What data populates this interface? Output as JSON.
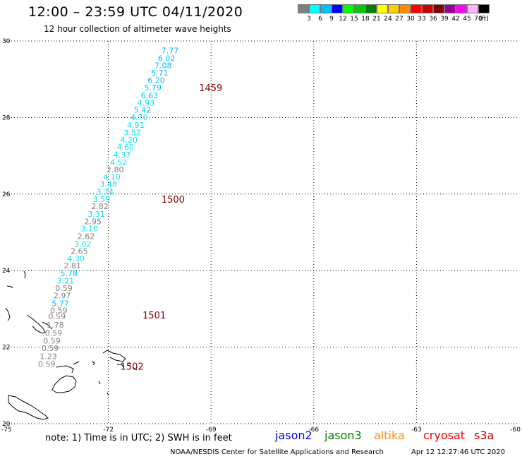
{
  "header": {
    "title": "12:00 – 23:59 UTC 04/11/2020",
    "subtitle": "12 hour collection of altimeter wave heights"
  },
  "colorbar": {
    "unit": "(ft)",
    "bins": [
      {
        "label": "3",
        "color": "#808080"
      },
      {
        "label": "6",
        "color": "#00ffff"
      },
      {
        "label": "9",
        "color": "#00bfff"
      },
      {
        "label": "12",
        "color": "#0000ff"
      },
      {
        "label": "15",
        "color": "#00ff00"
      },
      {
        "label": "18",
        "color": "#00cc00"
      },
      {
        "label": "21",
        "color": "#008000"
      },
      {
        "label": "24",
        "color": "#ffff00"
      },
      {
        "label": "27",
        "color": "#ffcc00"
      },
      {
        "label": "30",
        "color": "#ff8c00"
      },
      {
        "label": "33",
        "color": "#ff0000"
      },
      {
        "label": "36",
        "color": "#cc0000"
      },
      {
        "label": "39",
        "color": "#800000"
      },
      {
        "label": "42",
        "color": "#990099"
      },
      {
        "label": "45",
        "color": "#ff00ff"
      },
      {
        "label": "70",
        "color": "#ffb0ff"
      },
      {
        "label": "",
        "color": "#000000"
      }
    ]
  },
  "map": {
    "lon_range": [
      -75,
      -60
    ],
    "lat_range": [
      20,
      30
    ],
    "lon_ticks": [
      "-75",
      "-72",
      "-69",
      "-66",
      "-63",
      "-60"
    ],
    "lat_ticks": [
      "30",
      "28",
      "26",
      "24",
      "22",
      "20"
    ],
    "track": [
      {
        "lon": -70.2,
        "lat": 29.75,
        "swh": "7.77",
        "color": "#00bfff"
      },
      {
        "lon": -70.3,
        "lat": 29.55,
        "swh": "6.02",
        "color": "#00bfff"
      },
      {
        "lon": -70.4,
        "lat": 29.36,
        "swh": "7.08",
        "color": "#00bfff"
      },
      {
        "lon": -70.5,
        "lat": 29.17,
        "swh": "5.71",
        "color": "#00bfff"
      },
      {
        "lon": -70.6,
        "lat": 28.98,
        "swh": "6.20",
        "color": "#00bfff"
      },
      {
        "lon": -70.7,
        "lat": 28.78,
        "swh": "5.79",
        "color": "#00bfff"
      },
      {
        "lon": -70.8,
        "lat": 28.58,
        "swh": "6.63",
        "color": "#00bfff"
      },
      {
        "lon": -70.9,
        "lat": 28.39,
        "swh": "4.93",
        "color": "#00e5ee"
      },
      {
        "lon": -71.0,
        "lat": 28.2,
        "swh": "5.42",
        "color": "#00bfff"
      },
      {
        "lon": -71.1,
        "lat": 28.01,
        "swh": "4.70",
        "color": "#00e5ee"
      },
      {
        "lon": -71.2,
        "lat": 27.8,
        "swh": "4.91",
        "color": "#00e5ee"
      },
      {
        "lon": -71.3,
        "lat": 27.61,
        "swh": "3.52",
        "color": "#00e5ee"
      },
      {
        "lon": -71.4,
        "lat": 27.42,
        "swh": "4.20",
        "color": "#00e5ee"
      },
      {
        "lon": -71.5,
        "lat": 27.23,
        "swh": "4.60",
        "color": "#00e5ee"
      },
      {
        "lon": -71.6,
        "lat": 27.03,
        "swh": "4.37",
        "color": "#00e5ee"
      },
      {
        "lon": -71.7,
        "lat": 26.83,
        "swh": "4.52",
        "color": "#00e5ee"
      },
      {
        "lon": -71.8,
        "lat": 26.64,
        "swh": "2.80",
        "color": "#808080"
      },
      {
        "lon": -71.9,
        "lat": 26.45,
        "swh": "4.10",
        "color": "#00e5ee"
      },
      {
        "lon": -72.0,
        "lat": 26.26,
        "swh": "3.48",
        "color": "#00e5ee"
      },
      {
        "lon": -72.1,
        "lat": 26.06,
        "swh": "3.74",
        "color": "#00e5ee"
      },
      {
        "lon": -72.2,
        "lat": 25.87,
        "swh": "3.59",
        "color": "#00e5ee"
      },
      {
        "lon": -72.25,
        "lat": 25.68,
        "swh": "2.82",
        "color": "#808080"
      },
      {
        "lon": -72.35,
        "lat": 25.48,
        "swh": "3.31",
        "color": "#00e5ee"
      },
      {
        "lon": -72.45,
        "lat": 25.29,
        "swh": "2.95",
        "color": "#808080"
      },
      {
        "lon": -72.55,
        "lat": 25.1,
        "swh": "3.10",
        "color": "#00e5ee"
      },
      {
        "lon": -72.65,
        "lat": 24.9,
        "swh": "2.62",
        "color": "#808080"
      },
      {
        "lon": -72.75,
        "lat": 24.7,
        "swh": "3.02",
        "color": "#00e5ee"
      },
      {
        "lon": -72.85,
        "lat": 24.51,
        "swh": "2.65",
        "color": "#808080"
      },
      {
        "lon": -72.95,
        "lat": 24.32,
        "swh": "4.30",
        "color": "#00e5ee"
      },
      {
        "lon": -73.05,
        "lat": 24.13,
        "swh": "2.81",
        "color": "#808080"
      },
      {
        "lon": -73.15,
        "lat": 23.93,
        "swh": "5.78",
        "color": "#00bfff"
      },
      {
        "lon": -73.25,
        "lat": 23.74,
        "swh": "3.21",
        "color": "#00e5ee"
      },
      {
        "lon": -73.3,
        "lat": 23.54,
        "swh": "0.59",
        "color": "#808080"
      },
      {
        "lon": -73.35,
        "lat": 23.35,
        "swh": "2.97",
        "color": "#808080"
      },
      {
        "lon": -73.4,
        "lat": 23.15,
        "swh": "5.77",
        "color": "#00bfff"
      },
      {
        "lon": -73.45,
        "lat": 22.96,
        "swh": "0.59",
        "color": "#808080"
      },
      {
        "lon": -73.5,
        "lat": 22.8,
        "swh": "0.59",
        "color": "#808080"
      },
      {
        "lon": -73.55,
        "lat": 22.58,
        "swh": "1.78",
        "color": "#808080"
      },
      {
        "lon": -73.6,
        "lat": 22.37,
        "swh": "0.59",
        "color": "#808080"
      },
      {
        "lon": -73.65,
        "lat": 22.17,
        "swh": "0.59",
        "color": "#808080"
      },
      {
        "lon": -73.7,
        "lat": 21.97,
        "swh": "0.59",
        "color": "#808080"
      },
      {
        "lon": -73.75,
        "lat": 21.76,
        "swh": "1.23",
        "color": "#808080"
      },
      {
        "lon": -73.8,
        "lat": 21.56,
        "swh": "0.59",
        "color": "#808080"
      }
    ],
    "time_labels": [
      {
        "lon": -69.35,
        "lat": 28.78,
        "text": "1459"
      },
      {
        "lon": -70.45,
        "lat": 25.87,
        "text": "1500"
      },
      {
        "lon": -71.0,
        "lat": 22.84,
        "text": "1501"
      },
      {
        "lon": -71.65,
        "lat": 21.5,
        "text": "1502"
      }
    ],
    "label_color": "#800000"
  },
  "footer": {
    "note": "note:  1) Time is in UTC;  2) SWH is in feet",
    "credit": "NOAA/NESDIS Center for Satellite Applications and Research",
    "timestamp": "Apr 12 12:27:46 UTC 2020",
    "legend": [
      {
        "label": "jason2",
        "color": "#0000ff"
      },
      {
        "label": "jason3",
        "color": "#008000"
      },
      {
        "label": "altika",
        "color": "#ff8c00"
      },
      {
        "label": "cryosat",
        "color": "#ff0000"
      },
      {
        "label": "s3a",
        "color": "#cc0000"
      }
    ]
  }
}
